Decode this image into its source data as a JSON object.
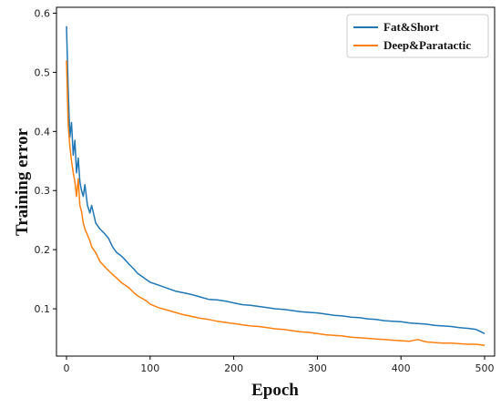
{
  "chart_data": {
    "type": "line",
    "title": "",
    "xlabel": "Epoch",
    "ylabel": "Training error",
    "xlim": [
      -12,
      512
    ],
    "ylim": [
      0.02,
      0.61
    ],
    "xticks": [
      0,
      100,
      200,
      300,
      400,
      500
    ],
    "yticks": [
      0.1,
      0.2,
      0.3,
      0.4,
      0.5,
      0.6
    ],
    "grid": false,
    "legend_position": "top-right",
    "series": [
      {
        "name": "Fat&Short",
        "color": "#1f77b4",
        "x": [
          0,
          2,
          4,
          6,
          8,
          10,
          12,
          14,
          16,
          18,
          20,
          22,
          25,
          28,
          30,
          35,
          40,
          45,
          50,
          55,
          60,
          65,
          70,
          75,
          80,
          85,
          90,
          95,
          100,
          110,
          120,
          130,
          140,
          150,
          160,
          170,
          180,
          190,
          200,
          210,
          220,
          230,
          240,
          250,
          260,
          270,
          280,
          290,
          300,
          310,
          320,
          330,
          340,
          350,
          360,
          370,
          380,
          390,
          400,
          410,
          420,
          430,
          440,
          450,
          460,
          470,
          480,
          490,
          500
        ],
        "y": [
          0.578,
          0.47,
          0.39,
          0.415,
          0.36,
          0.385,
          0.33,
          0.355,
          0.315,
          0.3,
          0.29,
          0.31,
          0.275,
          0.262,
          0.275,
          0.245,
          0.235,
          0.228,
          0.22,
          0.205,
          0.195,
          0.19,
          0.183,
          0.175,
          0.168,
          0.16,
          0.155,
          0.15,
          0.145,
          0.14,
          0.135,
          0.13,
          0.127,
          0.124,
          0.12,
          0.116,
          0.115,
          0.113,
          0.11,
          0.107,
          0.106,
          0.104,
          0.102,
          0.1,
          0.099,
          0.097,
          0.095,
          0.094,
          0.093,
          0.091,
          0.089,
          0.088,
          0.086,
          0.085,
          0.083,
          0.082,
          0.08,
          0.079,
          0.078,
          0.076,
          0.075,
          0.074,
          0.072,
          0.071,
          0.07,
          0.068,
          0.067,
          0.065,
          0.058
        ]
      },
      {
        "name": "Deep&Paratactic",
        "color": "#ff7f0e",
        "x": [
          0,
          2,
          4,
          6,
          8,
          10,
          12,
          14,
          16,
          18,
          20,
          22,
          25,
          28,
          30,
          35,
          40,
          45,
          50,
          55,
          60,
          65,
          70,
          75,
          80,
          85,
          90,
          95,
          100,
          110,
          120,
          130,
          140,
          150,
          160,
          170,
          180,
          190,
          200,
          210,
          220,
          230,
          240,
          250,
          260,
          270,
          280,
          290,
          300,
          310,
          320,
          330,
          340,
          350,
          360,
          370,
          380,
          390,
          400,
          410,
          420,
          430,
          440,
          450,
          460,
          470,
          480,
          490,
          500
        ],
        "y": [
          0.52,
          0.41,
          0.375,
          0.35,
          0.33,
          0.315,
          0.29,
          0.32,
          0.275,
          0.265,
          0.245,
          0.235,
          0.225,
          0.215,
          0.205,
          0.195,
          0.18,
          0.172,
          0.165,
          0.158,
          0.152,
          0.145,
          0.14,
          0.135,
          0.128,
          0.122,
          0.118,
          0.114,
          0.108,
          0.102,
          0.098,
          0.094,
          0.09,
          0.087,
          0.084,
          0.082,
          0.079,
          0.077,
          0.075,
          0.073,
          0.071,
          0.07,
          0.068,
          0.066,
          0.065,
          0.063,
          0.061,
          0.06,
          0.058,
          0.056,
          0.055,
          0.054,
          0.052,
          0.051,
          0.05,
          0.049,
          0.048,
          0.047,
          0.046,
          0.045,
          0.048,
          0.044,
          0.043,
          0.042,
          0.042,
          0.041,
          0.04,
          0.04,
          0.038
        ]
      }
    ]
  }
}
